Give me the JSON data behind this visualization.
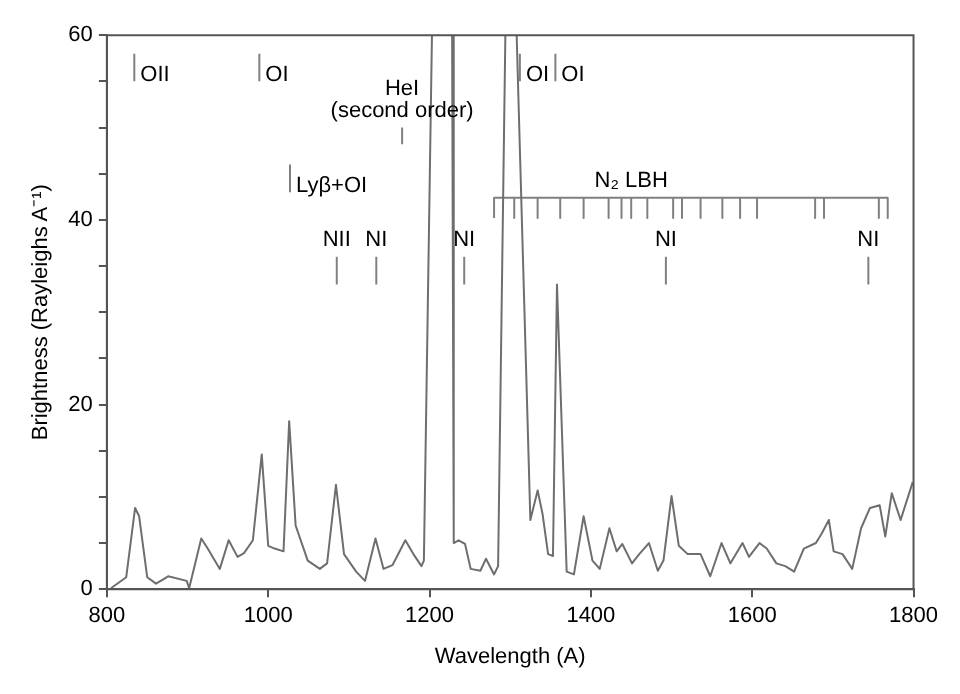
{
  "chart_data": {
    "type": "line",
    "xlabel": "Wavelength (A)",
    "ylabel": "Brightness (Rayleighs A⁻¹)",
    "xlim": [
      800,
      1800
    ],
    "xticks": [
      800,
      1000,
      1200,
      1400,
      1600,
      1800
    ],
    "ylim": [
      0,
      60
    ],
    "yticks": [
      0,
      {
        "value": 5,
        "label": null
      },
      {
        "value": 10,
        "label": null
      },
      {
        "value": 15,
        "label": null
      },
      20,
      {
        "value": 25,
        "label": null
      },
      {
        "value": 30,
        "label": null
      },
      {
        "value": 35,
        "label": null
      },
      40,
      {
        "value": 45,
        "label": null
      },
      {
        "value": 50,
        "label": null
      },
      {
        "value": 55,
        "label": null
      },
      60
    ],
    "grid": false,
    "legend": false,
    "marker": "none",
    "line_style": "solid",
    "series": [
      {
        "color": "#6e6e6e",
        "x": [
          805,
          824,
          835,
          840,
          850,
          861,
          876,
          899,
          902,
          917,
          925,
          940,
          951,
          962,
          970,
          981,
          992,
          1000,
          1008,
          1019,
          1026,
          1034,
          1049,
          1064,
          1073,
          1084,
          1094,
          1109,
          1120,
          1133,
          1143,
          1154,
          1170,
          1180,
          1190,
          1193,
          1203,
          1215,
          1228,
          1230,
          1236,
          1244,
          1251,
          1263,
          1270,
          1280,
          1285,
          1294,
          1301,
          1308,
          1325,
          1334,
          1340,
          1347,
          1353,
          1358,
          1370,
          1379,
          1391,
          1402,
          1411,
          1423,
          1432,
          1439,
          1451,
          1460,
          1472,
          1483,
          1490,
          1500,
          1509,
          1520,
          1536,
          1548,
          1562,
          1573,
          1588,
          1596,
          1609,
          1618,
          1630,
          1641,
          1652,
          1664,
          1679,
          1686,
          1695,
          1701,
          1712,
          1724,
          1735,
          1746,
          1758,
          1765,
          1773,
          1784,
          1799
        ],
        "values": [
          0.1,
          1.3,
          8.8,
          7.9,
          1.3,
          0.6,
          1.4,
          0.9,
          0.1,
          5.5,
          4.4,
          2.2,
          5.3,
          3.5,
          3.9,
          5.3,
          14.6,
          4.7,
          4.4,
          4.1,
          18.2,
          6.9,
          3.1,
          2.2,
          2.8,
          11.3,
          3.8,
          1.9,
          0.9,
          5.5,
          2.2,
          2.6,
          5.3,
          3.8,
          2.5,
          3.1,
          60,
          null,
          60,
          5.0,
          5.3,
          4.9,
          2.2,
          2.0,
          3.3,
          1.6,
          2.5,
          60,
          null,
          60,
          7.5,
          10.7,
          8.2,
          3.8,
          3.6,
          33,
          1.9,
          1.6,
          7.9,
          3.1,
          2.2,
          6.6,
          4.1,
          4.9,
          2.8,
          3.8,
          5.0,
          2.0,
          3.1,
          10.1,
          4.7,
          3.8,
          3.8,
          1.4,
          5.0,
          2.8,
          5.0,
          3.5,
          5.0,
          4.4,
          2.8,
          2.5,
          1.9,
          4.4,
          5.0,
          6.0,
          7.5,
          4.1,
          3.8,
          2.2,
          6.6,
          8.8,
          9.1,
          5.7,
          10.4,
          7.5,
          11.6
        ]
      },
      {
        "color": "#808080",
        "x": [
          834,
          834
        ],
        "values": [
          55,
          58
        ]
      },
      {
        "color": "#808080",
        "x": [
          989,
          989
        ],
        "values": [
          55,
          58
        ]
      },
      {
        "color": "#808080",
        "x": [
          1166,
          1166
        ],
        "values": [
          48.2,
          50
        ]
      },
      {
        "color": "#808080",
        "x": [
          1027,
          1027
        ],
        "values": [
          43,
          46
        ]
      },
      {
        "color": "#808080",
        "x": [
          1085,
          1085
        ],
        "values": [
          33,
          36
        ]
      },
      {
        "color": "#808080",
        "x": [
          1134,
          1134
        ],
        "values": [
          33,
          36
        ]
      },
      {
        "color": "#808080",
        "x": [
          1243,
          1243
        ],
        "values": [
          33,
          36
        ]
      },
      {
        "color": "#808080",
        "x": [
          1312,
          1312
        ],
        "values": [
          55,
          58
        ]
      },
      {
        "color": "#808080",
        "x": [
          1356,
          1356
        ],
        "values": [
          55,
          58
        ]
      },
      {
        "color": "#808080",
        "x": [
          1493,
          1493
        ],
        "values": [
          33,
          36
        ]
      },
      {
        "color": "#808080",
        "x": [
          1744,
          1744
        ],
        "values": [
          33,
          36
        ]
      },
      {
        "color": "#808080",
        "x": [
          1280,
          1280,
          1305,
          1305,
          1305,
          1334,
          1334,
          1334,
          1362,
          1362,
          1362,
          1391,
          1391,
          1391,
          1422,
          1422,
          1422,
          1438,
          1438,
          1438,
          1450,
          1450,
          1450,
          1470,
          1470,
          1470,
          1502,
          1502,
          1502,
          1513,
          1513,
          1513,
          1536,
          1536,
          1536,
          1563,
          1563,
          1563,
          1585,
          1585,
          1585,
          1606,
          1606,
          1606,
          1678,
          1678,
          1678,
          1689,
          1689,
          1689,
          1757,
          1757,
          1757,
          1768,
          1768
        ],
        "values": [
          40.2,
          42.4,
          42.4,
          40.2,
          42.4,
          42.4,
          40.2,
          42.4,
          42.4,
          40.2,
          42.4,
          42.4,
          40.2,
          42.4,
          42.4,
          40.2,
          42.4,
          42.4,
          40.2,
          42.4,
          42.4,
          40.2,
          42.4,
          42.4,
          40.2,
          42.4,
          42.4,
          40.2,
          42.4,
          42.4,
          40.2,
          42.4,
          42.4,
          40.2,
          42.4,
          42.4,
          40.2,
          42.4,
          42.4,
          40.2,
          42.4,
          42.4,
          40.2,
          42.4,
          42.4,
          40.2,
          42.4,
          42.4,
          40.2,
          42.4,
          42.4,
          40.2,
          42.4,
          42.4,
          40.2
        ]
      }
    ],
    "annotations": [
      {
        "text": "OII",
        "x": 834,
        "y": 55
      },
      {
        "text": "OI",
        "x": 989,
        "y": 55
      },
      {
        "text": "HeI",
        "x": 1166,
        "y": 50
      },
      {
        "text": "(second order)",
        "x": 1166,
        "y": 50
      },
      {
        "text": "Lyβ+OI",
        "x": 1027,
        "y": 43
      },
      {
        "text": "NII",
        "x": 1085,
        "y": 36
      },
      {
        "text": "NI",
        "x": 1134,
        "y": 36
      },
      {
        "text": "NI",
        "x": 1243,
        "y": 36
      },
      {
        "text": "OI",
        "x": 1312,
        "y": 55
      },
      {
        "text": "OI",
        "x": 1356,
        "y": 55
      },
      {
        "text": "N₂ LBH",
        "x": 1450,
        "y": 42.4
      },
      {
        "text": "NI",
        "x": 1493,
        "y": 36
      },
      {
        "text": "NI",
        "x": 1744,
        "y": 36
      }
    ]
  }
}
